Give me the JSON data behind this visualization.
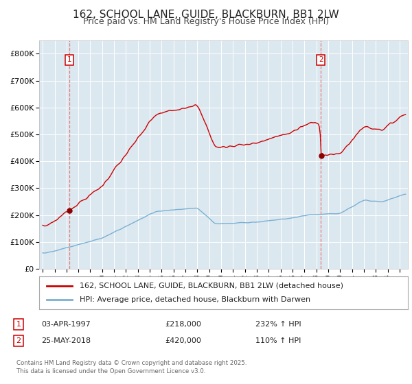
{
  "title": "162, SCHOOL LANE, GUIDE, BLACKBURN, BB1 2LW",
  "subtitle": "Price paid vs. HM Land Registry's House Price Index (HPI)",
  "legend_line1": "162, SCHOOL LANE, GUIDE, BLACKBURN, BB1 2LW (detached house)",
  "legend_line2": "HPI: Average price, detached house, Blackburn with Darwen",
  "annotation1_label": "1",
  "annotation1_date": "03-APR-1997",
  "annotation1_price": "£218,000",
  "annotation1_hpi": "232% ↑ HPI",
  "annotation2_label": "2",
  "annotation2_date": "25-MAY-2018",
  "annotation2_price": "£420,000",
  "annotation2_hpi": "110% ↑ HPI",
  "sale1_year": 1997.25,
  "sale1_value": 218000,
  "sale2_year": 2018.38,
  "sale2_value": 420000,
  "hpi_line_color": "#7ab0d4",
  "price_line_color": "#cc0000",
  "marker_color": "#8b0000",
  "dashed_line_color": "#e87070",
  "plot_bg_color": "#dce8f0",
  "fig_bg_color": "#ffffff",
  "grid_color": "#ffffff",
  "ylim": [
    0,
    850000
  ],
  "xlim_start": 1994.7,
  "xlim_end": 2025.7,
  "footer": "Contains HM Land Registry data © Crown copyright and database right 2025.\nThis data is licensed under the Open Government Licence v3.0.",
  "title_fontsize": 11,
  "subtitle_fontsize": 9,
  "tick_fontsize": 8,
  "ytick_labels": [
    "£0",
    "£100K",
    "£200K",
    "£300K",
    "£400K",
    "£500K",
    "£600K",
    "£700K",
    "£800K"
  ],
  "ytick_values": [
    0,
    100000,
    200000,
    300000,
    400000,
    500000,
    600000,
    700000,
    800000
  ]
}
